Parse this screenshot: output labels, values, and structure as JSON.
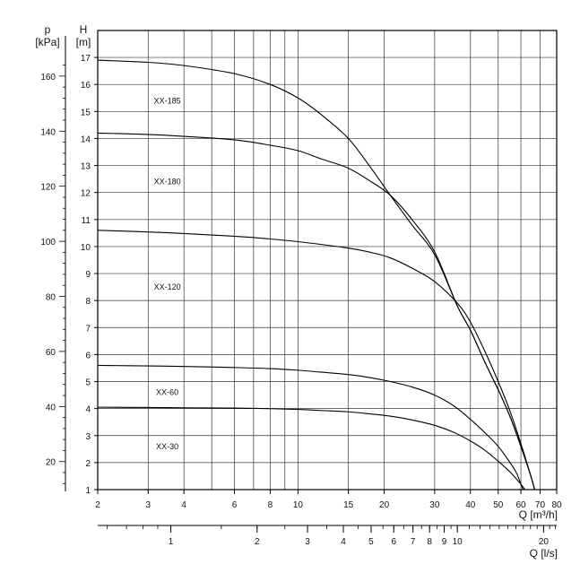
{
  "chart_data": {
    "type": "line",
    "x_axis": {
      "label": "Q [m³/h]",
      "scale": "log",
      "range": [
        2,
        80
      ],
      "ticks": [
        2,
        3,
        4,
        6,
        8,
        10,
        15,
        20,
        30,
        40,
        50,
        60,
        70,
        80
      ]
    },
    "x2_axis": {
      "label": "Q [l/s]",
      "scale": "log",
      "ticks": [
        1,
        2,
        3,
        4,
        5,
        6,
        7,
        8,
        9,
        10,
        20
      ]
    },
    "y_axis": {
      "label_unit": "[m]",
      "label_symbol": "H",
      "range": [
        1,
        17.5
      ],
      "ticks": [
        1,
        2,
        3,
        4,
        5,
        6,
        7,
        8,
        9,
        10,
        11,
        12,
        13,
        14,
        15,
        16,
        17
      ]
    },
    "y2_axis": {
      "label_unit": "[kPa]",
      "label_symbol": "p",
      "ticks": [
        20,
        40,
        60,
        80,
        100,
        120,
        140,
        160
      ]
    },
    "grid": true,
    "series": [
      {
        "name": "XX-185",
        "label_pos": [
          3.5,
          15.3
        ],
        "points": [
          [
            2,
            16.9
          ],
          [
            3,
            16.82
          ],
          [
            4,
            16.7
          ],
          [
            6,
            16.4
          ],
          [
            8,
            16.0
          ],
          [
            10,
            15.5
          ],
          [
            12,
            14.9
          ],
          [
            15,
            14.0
          ],
          [
            18,
            12.9
          ],
          [
            21,
            11.9
          ],
          [
            25,
            10.8
          ],
          [
            30,
            9.7
          ],
          [
            36,
            7.8
          ],
          [
            40,
            6.9
          ],
          [
            45,
            5.7
          ],
          [
            50,
            4.7
          ],
          [
            55,
            3.7
          ],
          [
            60,
            2.6
          ],
          [
            65,
            1.5
          ],
          [
            67,
            1.0
          ]
        ]
      },
      {
        "name": "XX-180",
        "label_pos": [
          3.5,
          12.3
        ],
        "points": [
          [
            2,
            14.2
          ],
          [
            3,
            14.15
          ],
          [
            4,
            14.08
          ],
          [
            6,
            13.95
          ],
          [
            8,
            13.75
          ],
          [
            10,
            13.55
          ],
          [
            12,
            13.25
          ],
          [
            15,
            12.9
          ],
          [
            18,
            12.4
          ],
          [
            21,
            11.9
          ],
          [
            25,
            11.0
          ],
          [
            30,
            9.8
          ],
          [
            36,
            7.8
          ],
          [
            40,
            6.9
          ],
          [
            45,
            5.7
          ],
          [
            50,
            4.7
          ],
          [
            55,
            3.7
          ],
          [
            60,
            2.6
          ],
          [
            65,
            1.5
          ],
          [
            67,
            1.0
          ]
        ]
      },
      {
        "name": "XX-120",
        "label_pos": [
          3.5,
          8.4
        ],
        "points": [
          [
            2,
            10.6
          ],
          [
            3,
            10.54
          ],
          [
            4,
            10.48
          ],
          [
            6,
            10.38
          ],
          [
            8,
            10.28
          ],
          [
            10,
            10.18
          ],
          [
            12,
            10.08
          ],
          [
            15,
            9.94
          ],
          [
            18,
            9.78
          ],
          [
            21,
            9.58
          ],
          [
            25,
            9.2
          ],
          [
            30,
            8.7
          ],
          [
            36,
            7.9
          ],
          [
            40,
            7.2
          ],
          [
            45,
            6.1
          ],
          [
            50,
            5.0
          ],
          [
            55,
            3.9
          ],
          [
            60,
            2.7
          ],
          [
            65,
            1.5
          ],
          [
            67,
            1.0
          ]
        ]
      },
      {
        "name": "XX-60",
        "label_pos": [
          3.5,
          4.5
        ],
        "points": [
          [
            2,
            5.6
          ],
          [
            3,
            5.58
          ],
          [
            4,
            5.56
          ],
          [
            6,
            5.52
          ],
          [
            8,
            5.48
          ],
          [
            10,
            5.42
          ],
          [
            12,
            5.35
          ],
          [
            15,
            5.26
          ],
          [
            18,
            5.14
          ],
          [
            21,
            5.0
          ],
          [
            25,
            4.8
          ],
          [
            30,
            4.5
          ],
          [
            35,
            4.1
          ],
          [
            40,
            3.6
          ],
          [
            45,
            3.1
          ],
          [
            50,
            2.6
          ],
          [
            55,
            2.0
          ],
          [
            58,
            1.6
          ],
          [
            61,
            1.0
          ]
        ]
      },
      {
        "name": "XX-30",
        "label_pos": [
          3.5,
          2.5
        ],
        "points": [
          [
            2,
            4.05
          ],
          [
            3,
            4.04
          ],
          [
            4,
            4.03
          ],
          [
            6,
            4.02
          ],
          [
            8,
            4.0
          ],
          [
            10,
            3.97
          ],
          [
            12,
            3.93
          ],
          [
            15,
            3.88
          ],
          [
            18,
            3.8
          ],
          [
            21,
            3.72
          ],
          [
            25,
            3.58
          ],
          [
            30,
            3.38
          ],
          [
            35,
            3.12
          ],
          [
            40,
            2.8
          ],
          [
            45,
            2.45
          ],
          [
            50,
            2.05
          ],
          [
            55,
            1.65
          ],
          [
            60,
            1.2
          ],
          [
            62,
            1.0
          ]
        ]
      }
    ]
  }
}
